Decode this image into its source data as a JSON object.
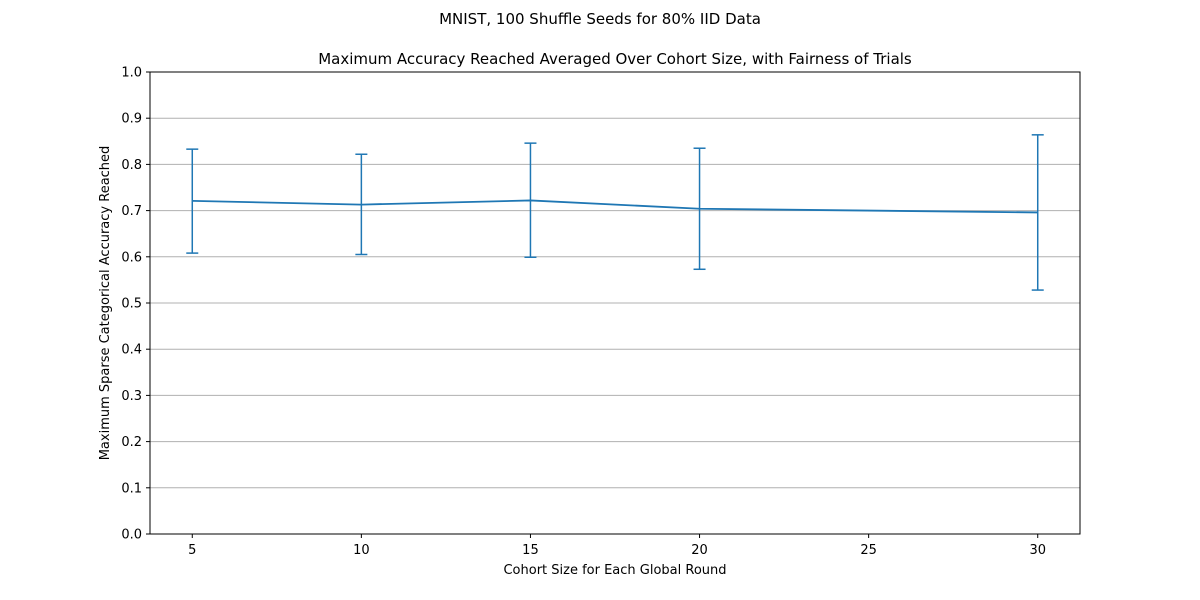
{
  "suptitle": "MNIST, 100 Shuffle Seeds for 80% IID Data",
  "colors": {
    "series": "#1f77b4",
    "grid": "#b0b0b0",
    "axis": "#000000"
  },
  "chart_data": {
    "type": "line",
    "title": "Maximum Accuracy Reached Averaged Over Cohort Size, with Fairness of Trials",
    "xlabel": "Cohort Size for Each Global Round",
    "ylabel": "Maximum Sparse Categorical Accuracy Reached",
    "xlim": [
      3.75,
      31.25
    ],
    "ylim": [
      0.0,
      1.0
    ],
    "x_ticks": [
      5,
      10,
      15,
      20,
      25,
      30
    ],
    "y_ticks": [
      0.0,
      0.1,
      0.2,
      0.3,
      0.4,
      0.5,
      0.6,
      0.7,
      0.8,
      0.9,
      1.0
    ],
    "y_tick_labels": [
      "0.0",
      "0.1",
      "0.2",
      "0.3",
      "0.4",
      "0.5",
      "0.6",
      "0.7",
      "0.8",
      "0.9",
      "1.0"
    ],
    "grid": "y-major",
    "series": [
      {
        "x": [
          5,
          10,
          15,
          20,
          30
        ],
        "y": [
          0.721,
          0.713,
          0.722,
          0.704,
          0.696
        ],
        "err_low": [
          0.608,
          0.605,
          0.599,
          0.573,
          0.528
        ],
        "err_high": [
          0.833,
          0.822,
          0.846,
          0.835,
          0.864
        ]
      }
    ]
  }
}
